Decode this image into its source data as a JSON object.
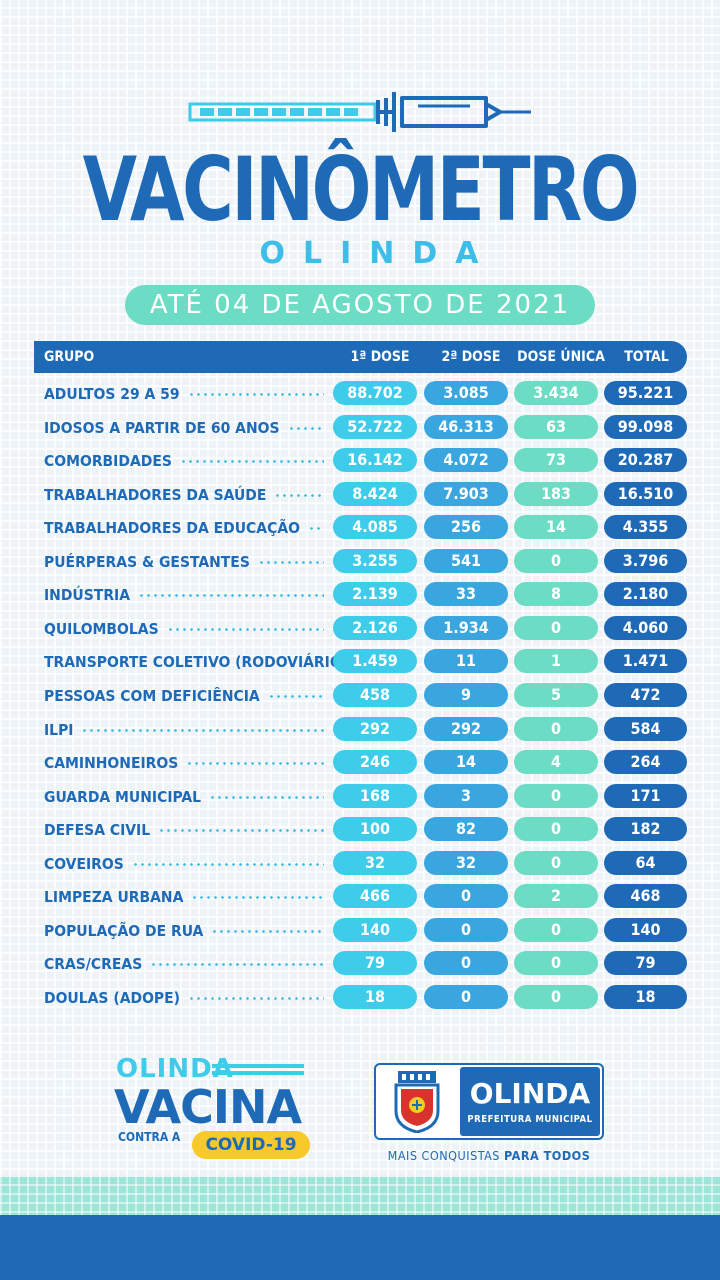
{
  "header": {
    "title": "VACINÔMETRO",
    "subtitle": "OLINDA",
    "date_label": "ATÉ 04 DE  AGOSTO DE 2021"
  },
  "table": {
    "columns": [
      "GRUPO",
      "1ª DOSE",
      "2ª DOSE",
      "DOSE ÚNICA",
      "TOTAL"
    ],
    "rows": [
      {
        "group": "ADULTOS 29 A 59",
        "d1": "88.702",
        "d2": "3.085",
        "du": "3.434",
        "total": "95.221"
      },
      {
        "group": "IDOSOS A PARTIR DE 60 ANOS",
        "d1": "52.722",
        "d2": "46.313",
        "du": "63",
        "total": "99.098"
      },
      {
        "group": "COMORBIDADES",
        "d1": "16.142",
        "d2": "4.072",
        "du": "73",
        "total": "20.287"
      },
      {
        "group": "TRABALHADORES DA SAÚDE",
        "d1": "8.424",
        "d2": "7.903",
        "du": "183",
        "total": "16.510"
      },
      {
        "group": "TRABALHADORES DA EDUCAÇÃO",
        "d1": "4.085",
        "d2": "256",
        "du": "14",
        "total": "4.355"
      },
      {
        "group": "PUÉRPERAS & GESTANTES",
        "d1": "3.255",
        "d2": "541",
        "du": "0",
        "total": "3.796"
      },
      {
        "group": "INDÚSTRIA",
        "d1": "2.139",
        "d2": "33",
        "du": "8",
        "total": "2.180"
      },
      {
        "group": "QUILOMBOLAS",
        "d1": "2.126",
        "d2": "1.934",
        "du": "0",
        "total": "4.060"
      },
      {
        "group": "TRANSPORTE COLETIVO (RODOVIÁRIOS)",
        "d1": "1.459",
        "d2": "11",
        "du": "1",
        "total": "1.471"
      },
      {
        "group": "PESSOAS COM DEFICIÊNCIA",
        "d1": "458",
        "d2": "9",
        "du": "5",
        "total": "472"
      },
      {
        "group": "ILPI",
        "d1": "292",
        "d2": "292",
        "du": "0",
        "total": "584"
      },
      {
        "group": "CAMINHONEIROS",
        "d1": "246",
        "d2": "14",
        "du": "4",
        "total": "264"
      },
      {
        "group": "GUARDA MUNICIPAL",
        "d1": "168",
        "d2": "3",
        "du": "0",
        "total": "171"
      },
      {
        "group": "DEFESA CIVIL",
        "d1": "100",
        "d2": "82",
        "du": "0",
        "total": "182"
      },
      {
        "group": "COVEIROS",
        "d1": "32",
        "d2": "32",
        "du": "0",
        "total": "64"
      },
      {
        "group": "LIMPEZA URBANA",
        "d1": "466",
        "d2": "0",
        "du": "2",
        "total": "468"
      },
      {
        "group": "POPULAÇÃO DE RUA",
        "d1": "140",
        "d2": "0",
        "du": "0",
        "total": "140"
      },
      {
        "group": "CRAS/CREAS",
        "d1": "79",
        "d2": "0",
        "du": "0",
        "total": "79"
      },
      {
        "group": "DOULAS (ADOPE)",
        "d1": "18",
        "d2": "0",
        "du": "0",
        "total": "18"
      }
    ]
  },
  "footer": {
    "campaign_line1": "OLINDA",
    "campaign_line2": "VACINA",
    "campaign_line3": "CONTRA A",
    "campaign_badge": "COVID-19",
    "city_name": "OLINDA",
    "city_sub": "PREFEITURA MUNICIPAL",
    "slogan_a": "MAIS CONQUISTAS",
    "slogan_b": "PARA TODOS"
  },
  "colors": {
    "primary": "#1e6ab7",
    "cyan": "#3fcbea",
    "sky": "#3aa6e0",
    "mint": "#6ddcc5",
    "yellow": "#f7c92b"
  },
  "icons": [
    "syringe-icon",
    "coat-of-arms-icon"
  ]
}
